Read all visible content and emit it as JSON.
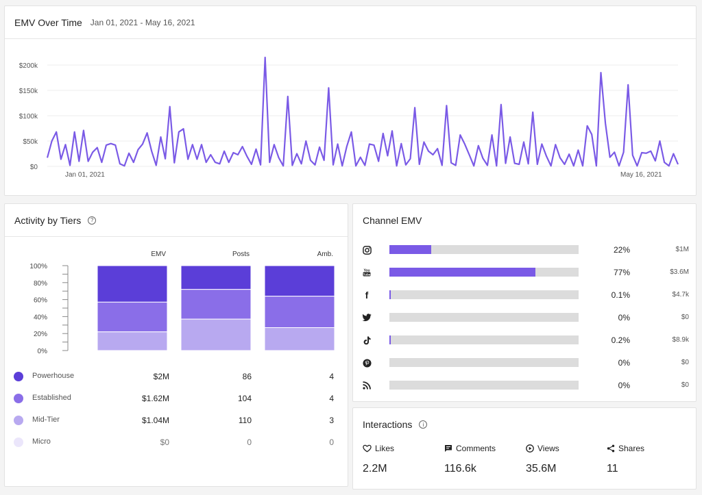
{
  "emv_card": {
    "title": "EMV Over Time",
    "date_range": "Jan 01, 2021 - May 16, 2021"
  },
  "chart_data": [
    {
      "type": "line",
      "ylim": [
        0,
        200000
      ],
      "y_ticks": [
        "$0",
        "$50k",
        "$100k",
        "$150k",
        "$200k"
      ],
      "x_ticks": [
        "Jan 01, 2021",
        "May 16, 2021"
      ],
      "grid": true,
      "color": "#7a5ae6",
      "series": [
        {
          "values": [
            17000,
            50000,
            68000,
            14000,
            43000,
            2000,
            68000,
            10000,
            71000,
            10000,
            28000,
            37000,
            8000,
            42000,
            45000,
            42000,
            5000,
            1000,
            26000,
            8000,
            33000,
            44000,
            66000,
            30000,
            2000,
            58000,
            15000,
            118000,
            7000,
            68000,
            74000,
            14000,
            43000,
            14000,
            43000,
            8000,
            23000,
            8000,
            5000,
            30000,
            8000,
            27000,
            23000,
            39000,
            20000,
            4000,
            34000,
            3000,
            215000,
            8000,
            43000,
            17000,
            1000,
            138000,
            2000,
            25000,
            5000,
            50000,
            12000,
            3000,
            38000,
            12000,
            155000,
            3000,
            44000,
            1000,
            39000,
            68000,
            1000,
            18000,
            2000,
            44000,
            42000,
            10000,
            65000,
            21000,
            70000,
            1000,
            45000,
            3000,
            15000,
            116000,
            4000,
            48000,
            30000,
            23000,
            35000,
            2000,
            120000,
            7000,
            2000,
            62000,
            44000,
            23000,
            1000,
            41000,
            16000,
            2000,
            62000,
            1000,
            122000,
            6000,
            58000,
            6000,
            4000,
            48000,
            5000,
            107000,
            4000,
            44000,
            20000,
            1000,
            43000,
            17000,
            4000,
            24000,
            1000,
            32000,
            1000,
            80000,
            63000,
            1000,
            185000,
            85000,
            18000,
            28000,
            1000,
            28000,
            161000,
            22000,
            1000,
            27000,
            26000,
            30000,
            11000,
            50000,
            8000,
            1000,
            25000,
            4000
          ]
        }
      ]
    },
    {
      "type": "bar",
      "stacked": true,
      "ylim": [
        0,
        100
      ],
      "y_ticks": [
        "0%",
        "20%",
        "40%",
        "60%",
        "80%",
        "100%"
      ],
      "categories": [
        "EMV",
        "Posts",
        "Amb."
      ],
      "series": [
        {
          "name": "Powerhouse",
          "color": "#5b3ed8",
          "values": [
            43,
            28,
            36
          ]
        },
        {
          "name": "Established",
          "color": "#8a6ee8",
          "values": [
            35,
            35,
            37
          ]
        },
        {
          "name": "Mid-Tier",
          "color": "#b8a9f0",
          "values": [
            22,
            37,
            27
          ]
        }
      ]
    }
  ],
  "tiers_card": {
    "title": "Activity by Tiers",
    "help": "?",
    "rows": [
      {
        "name": "Powerhouse",
        "color": "#5b3ed8",
        "emv": "$2M",
        "posts": "86",
        "amb": "4",
        "muted": false
      },
      {
        "name": "Established",
        "color": "#8a6ee8",
        "emv": "$1.62M",
        "posts": "104",
        "amb": "4",
        "muted": false
      },
      {
        "name": "Mid-Tier",
        "color": "#b8a9f0",
        "emv": "$1.04M",
        "posts": "110",
        "amb": "3",
        "muted": false
      },
      {
        "name": "Micro",
        "color": "#ebe6fb",
        "emv": "$0",
        "posts": "0",
        "amb": "0",
        "muted": true
      }
    ]
  },
  "channel_card": {
    "title": "Channel EMV",
    "channels": [
      {
        "icon": "instagram-icon",
        "fill": 0.22,
        "pct": "22%",
        "amount": "$1M"
      },
      {
        "icon": "youtube-icon",
        "fill": 0.77,
        "pct": "77%",
        "amount": "$3.6M"
      },
      {
        "icon": "facebook-icon",
        "fill": 0.001,
        "pct": "0.1%",
        "amount": "$4.7k"
      },
      {
        "icon": "twitter-icon",
        "fill": 0,
        "pct": "0%",
        "amount": "$0"
      },
      {
        "icon": "tiktok-icon",
        "fill": 0.002,
        "pct": "0.2%",
        "amount": "$8.9k"
      },
      {
        "icon": "pinterest-icon",
        "fill": 0,
        "pct": "0%",
        "amount": "$0"
      },
      {
        "icon": "rss-icon",
        "fill": 0,
        "pct": "0%",
        "amount": "$0"
      }
    ]
  },
  "interactions_card": {
    "title": "Interactions",
    "help": "i",
    "items": [
      {
        "icon": "heart-icon",
        "label": "Likes",
        "value": "2.2M"
      },
      {
        "icon": "comment-icon",
        "label": "Comments",
        "value": "116.6k"
      },
      {
        "icon": "play-icon",
        "label": "Views",
        "value": "35.6M"
      },
      {
        "icon": "share-icon",
        "label": "Shares",
        "value": "11"
      }
    ]
  }
}
